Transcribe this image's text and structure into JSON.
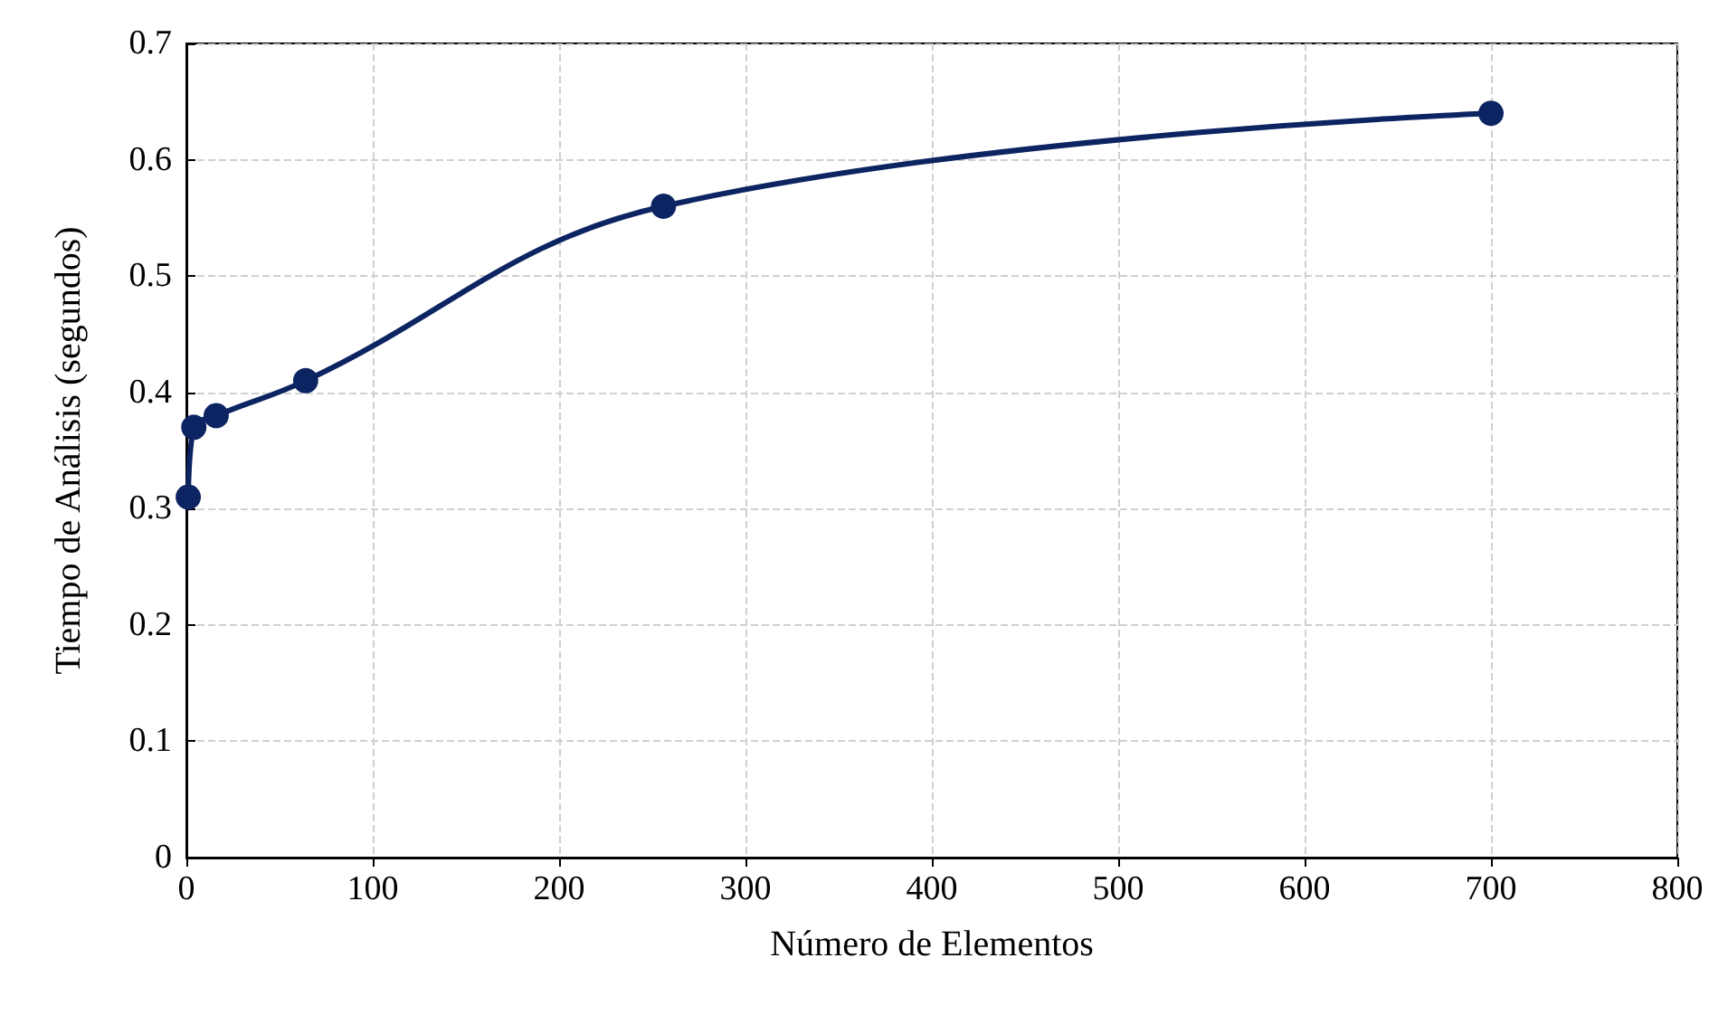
{
  "chart_data": {
    "type": "line",
    "xlabel": "Número de Elementos",
    "ylabel": "Tiempo de Análisis (segundos)",
    "x": [
      1,
      4,
      16,
      64,
      256,
      700
    ],
    "series": [
      {
        "color": "#0c2461",
        "values": [
          0.31,
          0.37,
          0.38,
          0.41,
          0.56,
          0.64
        ]
      }
    ],
    "xlim": [
      0,
      800
    ],
    "xticks": [
      0,
      100,
      200,
      300,
      400,
      500,
      600,
      700,
      800
    ],
    "ylim": [
      0,
      0.7
    ],
    "yticks": [
      0,
      0.1,
      0.2,
      0.3,
      0.4,
      0.5,
      0.6,
      0.7
    ],
    "grid": true,
    "marker": "circle",
    "line_style": "solid"
  }
}
